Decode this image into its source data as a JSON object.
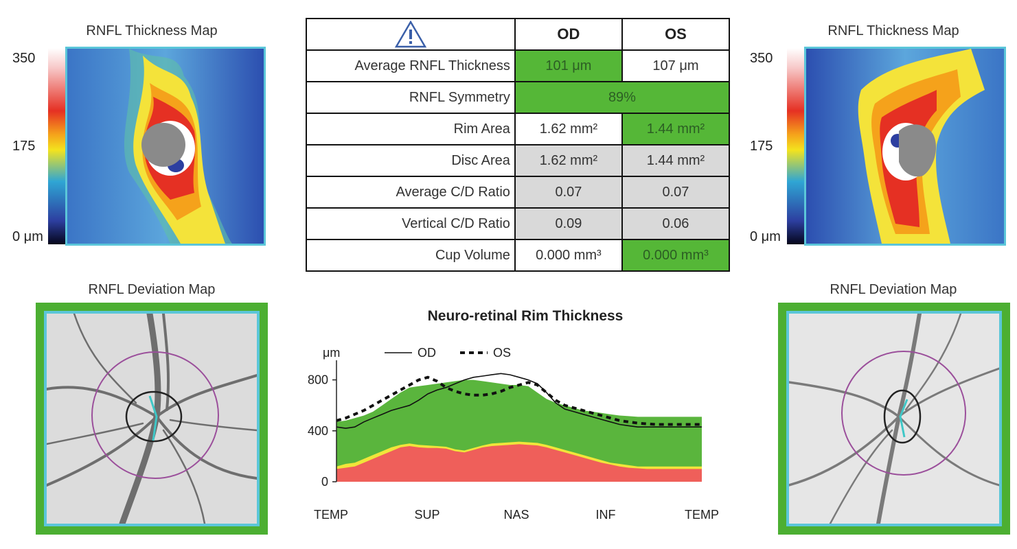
{
  "left_eye": {
    "thickness_title": "RNFL Thickness Map",
    "deviation_title": "RNFL Deviation Map",
    "scale_max": "350",
    "scale_mid": "175",
    "scale_min": "0 μm"
  },
  "right_eye": {
    "thickness_title": "RNFL Thickness Map",
    "deviation_title": "RNFL Deviation Map",
    "scale_max": "350",
    "scale_mid": "175",
    "scale_min": "0 μm"
  },
  "table": {
    "warning_icon": "warning-triangle-icon",
    "col_od": "OD",
    "col_os": "OS",
    "rows": [
      {
        "label": "Average RNFL Thickness",
        "od": "101 μm",
        "os": "107 μm"
      },
      {
        "label": "RNFL Symmetry",
        "both": "89%"
      },
      {
        "label": "Rim Area",
        "od": "1.62 mm²",
        "os": "1.44 mm²"
      },
      {
        "label": "Disc Area",
        "od": "1.62 mm²",
        "os": "1.44 mm²"
      },
      {
        "label": "Average C/D Ratio",
        "od": "0.07",
        "os": "0.07"
      },
      {
        "label": "Vertical C/D Ratio",
        "od": "0.09",
        "os": "0.06"
      },
      {
        "label": "Cup Volume",
        "od": "0.000 mm³",
        "os": "0.000 mm³"
      }
    ],
    "colors": {
      "normal_green": "#55b737",
      "grey": "#d9d9d9"
    }
  },
  "chart_data": {
    "type": "area",
    "title": "Neuro-retinal Rim Thickness",
    "ylabel": "μm",
    "ylim": [
      0,
      900
    ],
    "yticks": [
      0,
      400,
      800
    ],
    "xticks": [
      "TEMP",
      "SUP",
      "NAS",
      "INF",
      "TEMP"
    ],
    "x": [
      0,
      0.1,
      0.2,
      0.3,
      0.4,
      0.5,
      0.6,
      0.7,
      0.8,
      0.9,
      1.0,
      1.1,
      1.2,
      1.3,
      1.4,
      1.5,
      1.6,
      1.7,
      1.8,
      1.9,
      2.0,
      2.1,
      2.2,
      2.3,
      2.4,
      2.5,
      2.6,
      2.7,
      2.8,
      2.9,
      3.0,
      3.1,
      3.2,
      3.3,
      3.4,
      3.5,
      3.6,
      3.7,
      3.8,
      3.9,
      4.0
    ],
    "bands": [
      {
        "name": "red",
        "color": "#ef5f5a",
        "values": [
          100,
          110,
          120,
          150,
          180,
          210,
          240,
          270,
          280,
          270,
          265,
          265,
          260,
          240,
          230,
          250,
          270,
          280,
          285,
          290,
          295,
          290,
          285,
          270,
          250,
          230,
          210,
          190,
          170,
          150,
          135,
          120,
          110,
          105,
          100,
          100,
          100,
          100,
          100,
          100,
          100
        ]
      },
      {
        "name": "yellow",
        "color": "#f1e53a",
        "values": [
          120,
          140,
          150,
          180,
          210,
          240,
          270,
          290,
          300,
          290,
          285,
          280,
          275,
          255,
          245,
          265,
          285,
          300,
          305,
          310,
          315,
          310,
          305,
          290,
          270,
          250,
          230,
          210,
          190,
          170,
          150,
          140,
          130,
          120,
          120,
          120,
          120,
          120,
          120,
          120,
          120
        ]
      },
      {
        "name": "green",
        "color": "#5ab53d",
        "values": [
          470,
          480,
          500,
          520,
          550,
          600,
          650,
          700,
          740,
          750,
          760,
          770,
          780,
          790,
          800,
          800,
          790,
          780,
          770,
          760,
          760,
          750,
          700,
          650,
          620,
          600,
          580,
          560,
          550,
          540,
          530,
          520,
          515,
          510,
          510,
          510,
          510,
          510,
          510,
          510,
          510
        ]
      }
    ],
    "series": [
      {
        "name": "OD",
        "style": "solid",
        "values": [
          430,
          420,
          430,
          470,
          500,
          530,
          560,
          580,
          600,
          640,
          690,
          720,
          740,
          770,
          800,
          820,
          830,
          840,
          850,
          840,
          820,
          800,
          770,
          700,
          620,
          570,
          550,
          530,
          510,
          490,
          470,
          450,
          440,
          430,
          430,
          430,
          430,
          430,
          430,
          430,
          430
        ]
      },
      {
        "name": "OS",
        "style": "dashed",
        "values": [
          480,
          500,
          530,
          560,
          600,
          640,
          680,
          720,
          760,
          800,
          820,
          790,
          740,
          710,
          690,
          680,
          680,
          690,
          710,
          740,
          760,
          780,
          760,
          700,
          640,
          600,
          580,
          560,
          540,
          520,
          500,
          480,
          470,
          460,
          455,
          450,
          450,
          450,
          450,
          450,
          450
        ]
      }
    ]
  }
}
